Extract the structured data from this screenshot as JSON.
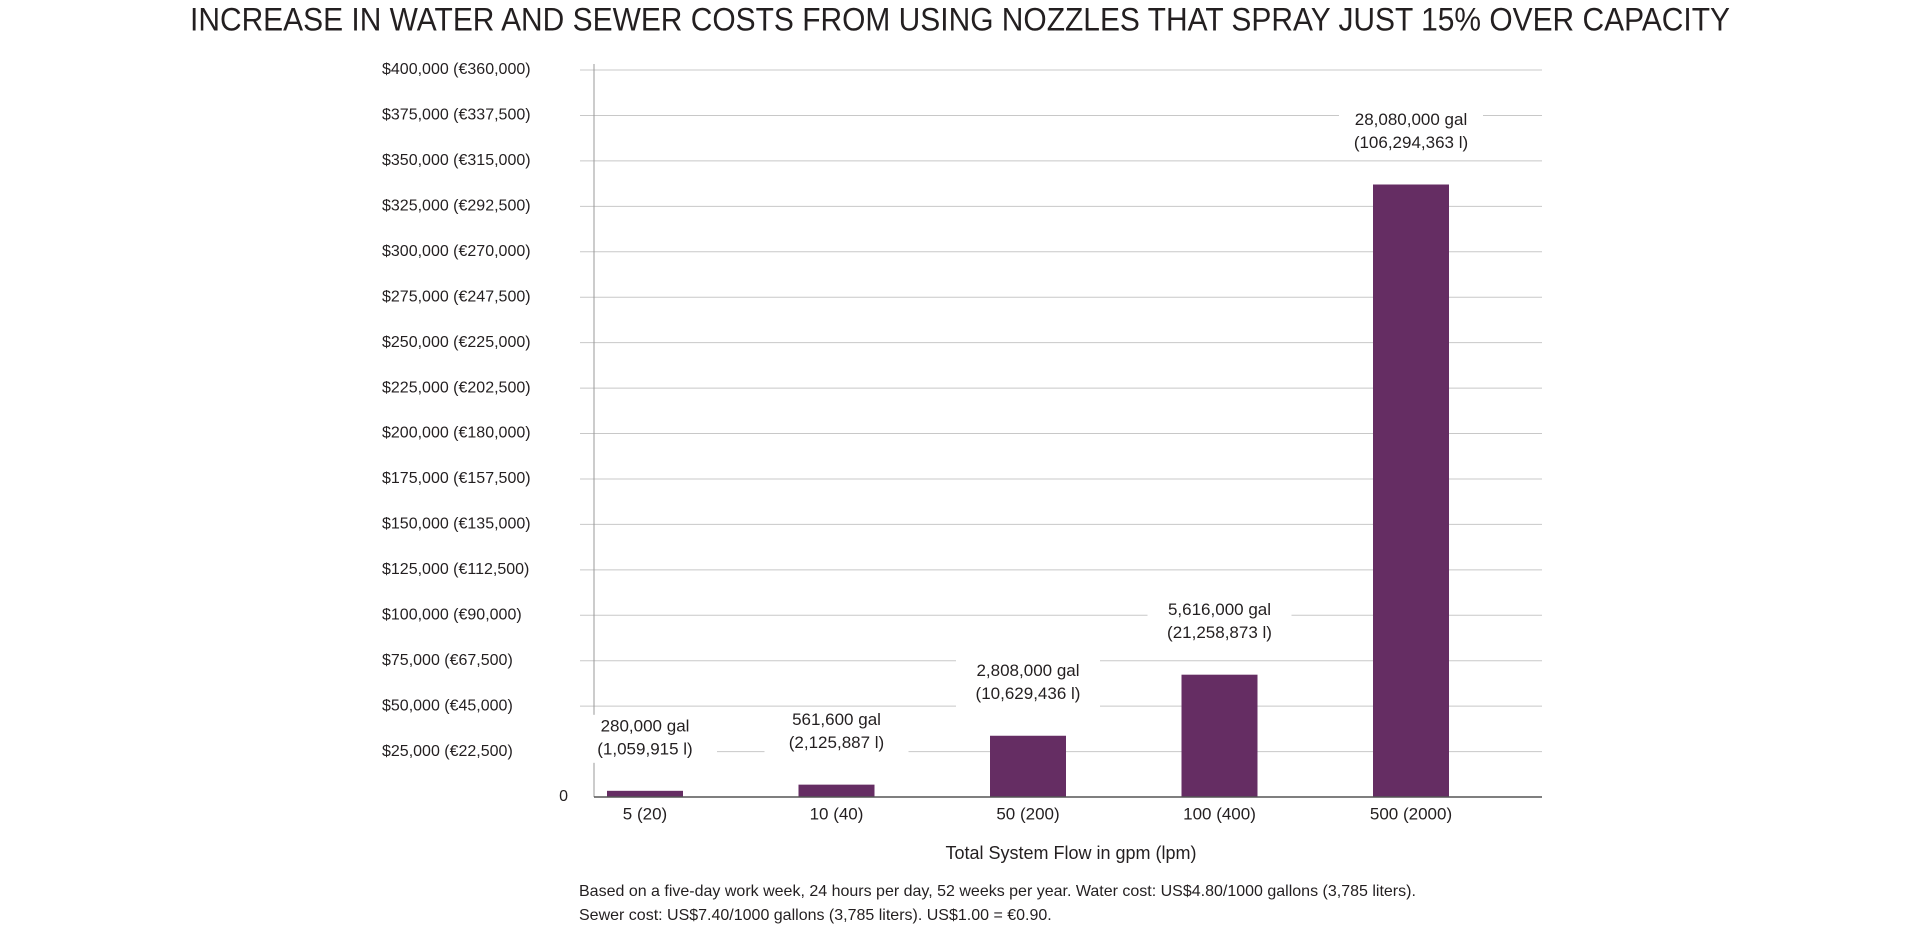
{
  "chart_data": {
    "type": "bar",
    "title": "INCREASE IN WATER AND SEWER COSTS FROM USING NOZZLES THAT SPRAY JUST 15% OVER CAPACITY",
    "x_label": "Total System Flow in gpm (lpm)",
    "categories": [
      "5 (20)",
      "10 (40)",
      "50 (200)",
      "100 (400)",
      "500 (2000)"
    ],
    "values": [
      3400,
      6800,
      33700,
      67300,
      337000
    ],
    "color": "#652d63",
    "annotations": [
      [
        "280,000 gal",
        "(1,059,915 l)"
      ],
      [
        "561,600 gal",
        "(2,125,887 l)"
      ],
      [
        "2,808,000 gal",
        "(10,629,436 l)"
      ],
      [
        "5,616,000 gal",
        "(21,258,873 l)"
      ],
      [
        "28,080,000 gal",
        "(106,294,363 l)"
      ]
    ],
    "ylim": [
      0,
      400000
    ],
    "yticks": [
      0,
      {
        "value": 25000,
        "label": "$25,000 (€22,500)"
      },
      {
        "value": 50000,
        "label": "$50,000 (€45,000)"
      },
      {
        "value": 75000,
        "label": "$75,000 (€67,500)"
      },
      {
        "value": 100000,
        "label": "$100,000 (€90,000)"
      },
      {
        "value": 125000,
        "label": "$125,000 (€112,500)"
      },
      {
        "value": 150000,
        "label": "$150,000 (€135,000)"
      },
      {
        "value": 175000,
        "label": "$175,000 (€157,500)"
      },
      {
        "value": 200000,
        "label": "$200,000 (€180,000)"
      },
      {
        "value": 225000,
        "label": "$225,000 (€202,500)"
      },
      {
        "value": 250000,
        "label": "$250,000 (€225,000)"
      },
      {
        "value": 275000,
        "label": "$275,000 (€247,500)"
      },
      {
        "value": 300000,
        "label": "$300,000 (€270,000)"
      },
      {
        "value": 325000,
        "label": "$325,000 (€292,500)"
      },
      {
        "value": 350000,
        "label": "$350,000 (€315,000)"
      },
      {
        "value": 375000,
        "label": "$375,000 (€337,500)"
      },
      {
        "value": 400000,
        "label": "$400,000 (€360,000)"
      }
    ],
    "grid": true,
    "note": [
      "Based on a five-day work week, 24 hours per day, 52 weeks per year. Water cost: US$4.80/1000 gallons (3,785 liters).",
      "Sewer cost: US$7.40/1000 gallons (3,785 liters). US$1.00 = €0.90."
    ]
  }
}
